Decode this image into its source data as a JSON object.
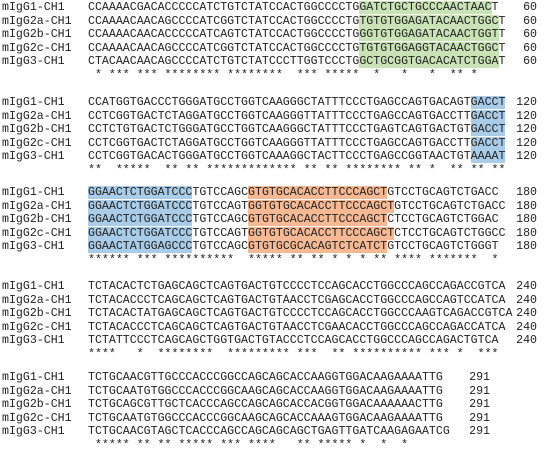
{
  "highlight_colors": {
    "green": "#c9e3b6",
    "blue": "#a9cde9",
    "orange": "#f6b994"
  },
  "blocks": [
    {
      "rows": [
        {
          "name": "mIgG1-CH1",
          "segments": [
            {
              "text": "CCAAAACGACACCCCCATCTGTCTATCCACTGGCCCCTG"
            },
            {
              "text": "GATCTGCTGCCCAACTAAC",
              "hl": "green"
            },
            {
              "text": "T"
            }
          ],
          "end": 60
        },
        {
          "name": "mIgG2a-CH1",
          "segments": [
            {
              "text": "CCAAAACAACAGCCCCATCGGTCTATCCACTGGCCCCTG"
            },
            {
              "text": "TGTGTGGAGATACAACTGGC",
              "hl": "green"
            },
            {
              "text": "T"
            }
          ],
          "end": 60
        },
        {
          "name": "mIgG2b-CH1",
          "segments": [
            {
              "text": "CCAAAACAACACCCCCATCAGTCTATCCACTGGCCCCTG"
            },
            {
              "text": "GGTGTGGAGATACAACTGGT",
              "hl": "green"
            },
            {
              "text": "T"
            }
          ],
          "end": 60
        },
        {
          "name": "mIgG2c-CH1",
          "segments": [
            {
              "text": "CCAAAACAACAGCCCCATCGGTCTATCCACTGGCCCCTG"
            },
            {
              "text": "TGTGTGGAGGTACAACTGGC",
              "hl": "green"
            },
            {
              "text": "T"
            }
          ],
          "end": 60
        },
        {
          "name": "mIgG3-CH1",
          "segments": [
            {
              "text": "CTACAACAACAGCCCCATCTGTCTATCCCTTGGTCCCTG"
            },
            {
              "text": "GCTGCGGTGACACATCTGGA",
              "hl": "green"
            },
            {
              "text": "T"
            }
          ],
          "end": 60
        }
      ],
      "conservation": " * *** *** ******** ********  *** *****  *   *   *  ** *"
    },
    {
      "rows": [
        {
          "name": "mIgG1-CH1",
          "segments": [
            {
              "text": "CCATGGTGACCCTGGGATGCCTGGTCAAGGGCTATTTCCCTGAGCCAGTGACAGT"
            },
            {
              "text": "GACCT",
              "hl": "blue"
            }
          ],
          "end": 120
        },
        {
          "name": "mIgG2a-CH1",
          "segments": [
            {
              "text": "CCTCGGTGACTCTAGGATGCCTGGTCAAGGGTTATTTCCCTGAGCCAGTGACCTT"
            },
            {
              "text": "GACCT",
              "hl": "blue"
            }
          ],
          "end": 120
        },
        {
          "name": "mIgG2b-CH1",
          "segments": [
            {
              "text": "CCTCTGTGACTCTGGGATGCCTGGTCAAGGGCTATTTCCCTGAGTCAGTGACTGT"
            },
            {
              "text": "GACCT",
              "hl": "blue"
            }
          ],
          "end": 120
        },
        {
          "name": "mIgG2c-CH1",
          "segments": [
            {
              "text": "CCTCGGTGACTCTAGGATGCCTGGTCAAGGGTTATTTCCCTGAGCCAGTGACCTT"
            },
            {
              "text": "GACCT",
              "hl": "blue"
            }
          ],
          "end": 120
        },
        {
          "name": "mIgG3-CH1",
          "segments": [
            {
              "text": "CCTCGGTGACACTGGGATGCCTGGTCAAAGGCTACTTCCCTGAGCCGGTAACTGT"
            },
            {
              "text": "AAAAT",
              "hl": "blue"
            }
          ],
          "end": 120
        }
      ],
      "conservation": "**  *****  ** ** ************* ** ** ******** ** *  ** ** **"
    },
    {
      "rows": [
        {
          "name": "mIgG1-CH1",
          "segments": [
            {
              "text": "GGAACTCTGGATCCC",
              "hl": "blue"
            },
            {
              "text": "TGTCCAGC"
            },
            {
              "text": "GTGTGCACACCTTCCCAGCT",
              "hl": "orange"
            },
            {
              "text": "GTCCTGCAGTCTGACC"
            }
          ],
          "end": 180
        },
        {
          "name": "mIgG2a-CH1",
          "segments": [
            {
              "text": "GGAACTCTGGATCCC",
              "hl": "blue"
            },
            {
              "text": "TGTCCAGT"
            },
            {
              "text": "GGTGTGCACACCTTCCCAGCT",
              "hl": "orange"
            },
            {
              "text": "GTCCTGCAGTCTGACC"
            }
          ],
          "end": 180
        },
        {
          "name": "mIgG2b-CH1",
          "segments": [
            {
              "text": "GGAACTCTGGATCCC",
              "hl": "blue"
            },
            {
              "text": "TGTCCAGC"
            },
            {
              "text": "GTGTGCACACCTTCCCAGCT",
              "hl": "orange"
            },
            {
              "text": "CTCCTGCAGTCTGGAC"
            }
          ],
          "end": 180
        },
        {
          "name": "mIgG2c-CH1",
          "segments": [
            {
              "text": "GGAACTCTGGATCCC",
              "hl": "blue"
            },
            {
              "text": "TGTCCAGT"
            },
            {
              "text": "GGTGTGCACACCTTCCCAGCT",
              "hl": "orange"
            },
            {
              "text": "CTCCTGCAGTCTGGCC"
            }
          ],
          "end": 180
        },
        {
          "name": "mIgG3-CH1",
          "segments": [
            {
              "text": "GGAACTATGGAGCCC",
              "hl": "blue"
            },
            {
              "text": "TGTCCAGC"
            },
            {
              "text": "GTGTGCGCACAGTCTCATCT",
              "hl": "orange"
            },
            {
              "text": "GTCCTGCAGTCTGGGT"
            }
          ],
          "end": 180
        }
      ],
      "conservation": "****** *** **********  ***** ** ** * * * ** **** *******  *"
    },
    {
      "rows": [
        {
          "name": "mIgG1-CH1",
          "segments": [
            {
              "text": "TCTACACTCTGAGCAGCTCAGTGACTGTCCCCTCCAGCACCTGGCCCAGCCAGACCGTCA"
            }
          ],
          "end": 240
        },
        {
          "name": "mIgG2a-CH1",
          "segments": [
            {
              "text": "TCTACACCCTCAGCAGCTCAGTGACTGTAACCTCGAGCACCTGGCCCAGCCAGTCCATCA"
            }
          ],
          "end": 240
        },
        {
          "name": "mIgG2b-CH1",
          "segments": [
            {
              "text": "TCTACACTATGAGCAGCTCAGTGACTGTCCCCTCCAGCACCTGGCCCAAGTCAGACCGTCA"
            }
          ],
          "end": 240
        },
        {
          "name": "mIgG2c-CH1",
          "segments": [
            {
              "text": "TCTACACCCTCAGCAGCTCAGTGACTGTAACCTCGAACACCTGGCCCAGCCAGACCATCA"
            }
          ],
          "end": 240
        },
        {
          "name": "mIgG3-CH1",
          "segments": [
            {
              "text": "TCTATTCCCTCAGCAGCTGGTGACTGTACCCTCCAGCACCTGGCCCAGCCAGACTGTCA"
            }
          ],
          "end": 240
        }
      ],
      "conservation": "****   *  ********  ********* ***  ** ********** *** *  ***"
    },
    {
      "rows": [
        {
          "name": "mIgG1-CH1",
          "segments": [
            {
              "text": "TCTGCAACGTTGCCCACCCGGCCAGCAGCACCAAGGTGGACAAGAAAATTG"
            }
          ],
          "end": 291
        },
        {
          "name": "mIgG2a-CH1",
          "segments": [
            {
              "text": "TCTGCAATGTGGCCCACCCGGCAAGCAGCACCAAGGTGGACAAGAAAATTG"
            }
          ],
          "end": 291
        },
        {
          "name": "mIgG2b-CH1",
          "segments": [
            {
              "text": "TCTGCAGCGTTGCTCACCCAGCCAGCAGCACCACGGTGGACAAAAAACTTG"
            }
          ],
          "end": 291
        },
        {
          "name": "mIgG2c-CH1",
          "segments": [
            {
              "text": "TCTGCAATGTGGCCCACCCGGCAAGCAGCACCAAAGTGGACAAGAAAATTG"
            }
          ],
          "end": 291
        },
        {
          "name": "mIgG3-CH1",
          "segments": [
            {
              "text": "TCTGCAACGTAGCTCACCCAGCCAGCAGCAGCTGAGTTGATCAAGAGAATCG"
            }
          ],
          "end": 291
        }
      ],
      "conservation": " ***** ** ** ***** *** ****   ** ***** *  *  *  "
    }
  ]
}
